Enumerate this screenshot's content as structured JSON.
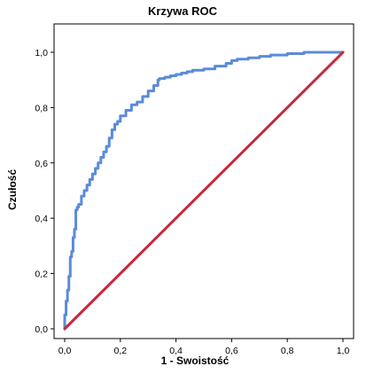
{
  "chart_data": {
    "type": "line",
    "title": "Krzywa ROC",
    "xlabel": "1 - Swoistość",
    "ylabel": "Czułość",
    "xlim": [
      0.0,
      1.0
    ],
    "ylim": [
      0.0,
      1.0
    ],
    "x_ticks": [
      "0,0",
      "0,2",
      "0,4",
      "0,6",
      "0,8",
      "1,0"
    ],
    "y_ticks": [
      "0,0",
      "0,2",
      "0,4",
      "0,6",
      "0,8",
      "1,0"
    ],
    "grid": false,
    "legend": "none",
    "series": [
      {
        "color": "#5b8bd9",
        "style": "step",
        "x": [
          0.0,
          0.0,
          0.005,
          0.005,
          0.01,
          0.01,
          0.015,
          0.015,
          0.02,
          0.02,
          0.025,
          0.025,
          0.03,
          0.03,
          0.035,
          0.035,
          0.04,
          0.04,
          0.045,
          0.045,
          0.05,
          0.05,
          0.06,
          0.06,
          0.07,
          0.07,
          0.08,
          0.08,
          0.09,
          0.09,
          0.1,
          0.1,
          0.11,
          0.11,
          0.12,
          0.12,
          0.13,
          0.13,
          0.14,
          0.14,
          0.15,
          0.15,
          0.16,
          0.16,
          0.17,
          0.17,
          0.18,
          0.18,
          0.19,
          0.19,
          0.2,
          0.2,
          0.22,
          0.22,
          0.24,
          0.24,
          0.26,
          0.26,
          0.28,
          0.28,
          0.3,
          0.3,
          0.32,
          0.32,
          0.335,
          0.335,
          0.34,
          0.34,
          0.36,
          0.36,
          0.38,
          0.38,
          0.4,
          0.4,
          0.42,
          0.42,
          0.44,
          0.44,
          0.46,
          0.46,
          0.5,
          0.5,
          0.54,
          0.54,
          0.58,
          0.58,
          0.6,
          0.6,
          0.62,
          0.62,
          0.66,
          0.66,
          0.7,
          0.7,
          0.74,
          0.74,
          0.8,
          0.8,
          0.86,
          0.86,
          0.92,
          0.92,
          1.0
        ],
        "y": [
          0.0,
          0.05,
          0.05,
          0.1,
          0.1,
          0.14,
          0.14,
          0.19,
          0.19,
          0.26,
          0.26,
          0.28,
          0.28,
          0.33,
          0.33,
          0.36,
          0.36,
          0.43,
          0.43,
          0.44,
          0.44,
          0.45,
          0.45,
          0.48,
          0.48,
          0.5,
          0.5,
          0.52,
          0.52,
          0.54,
          0.54,
          0.56,
          0.56,
          0.58,
          0.58,
          0.6,
          0.6,
          0.62,
          0.62,
          0.64,
          0.64,
          0.66,
          0.66,
          0.69,
          0.69,
          0.72,
          0.72,
          0.74,
          0.74,
          0.75,
          0.75,
          0.77,
          0.77,
          0.79,
          0.79,
          0.81,
          0.81,
          0.82,
          0.82,
          0.84,
          0.84,
          0.86,
          0.86,
          0.88,
          0.88,
          0.9,
          0.9,
          0.905,
          0.905,
          0.91,
          0.91,
          0.915,
          0.915,
          0.92,
          0.92,
          0.925,
          0.925,
          0.93,
          0.93,
          0.935,
          0.935,
          0.94,
          0.94,
          0.95,
          0.95,
          0.96,
          0.96,
          0.97,
          0.97,
          0.975,
          0.975,
          0.98,
          0.98,
          0.985,
          0.985,
          0.99,
          0.99,
          0.995,
          0.995,
          1.0,
          1.0,
          1.0,
          1.0
        ]
      },
      {
        "color": "#c8273a",
        "style": "line",
        "x": [
          0.0,
          1.0
        ],
        "y": [
          0.0,
          1.0
        ]
      }
    ]
  }
}
